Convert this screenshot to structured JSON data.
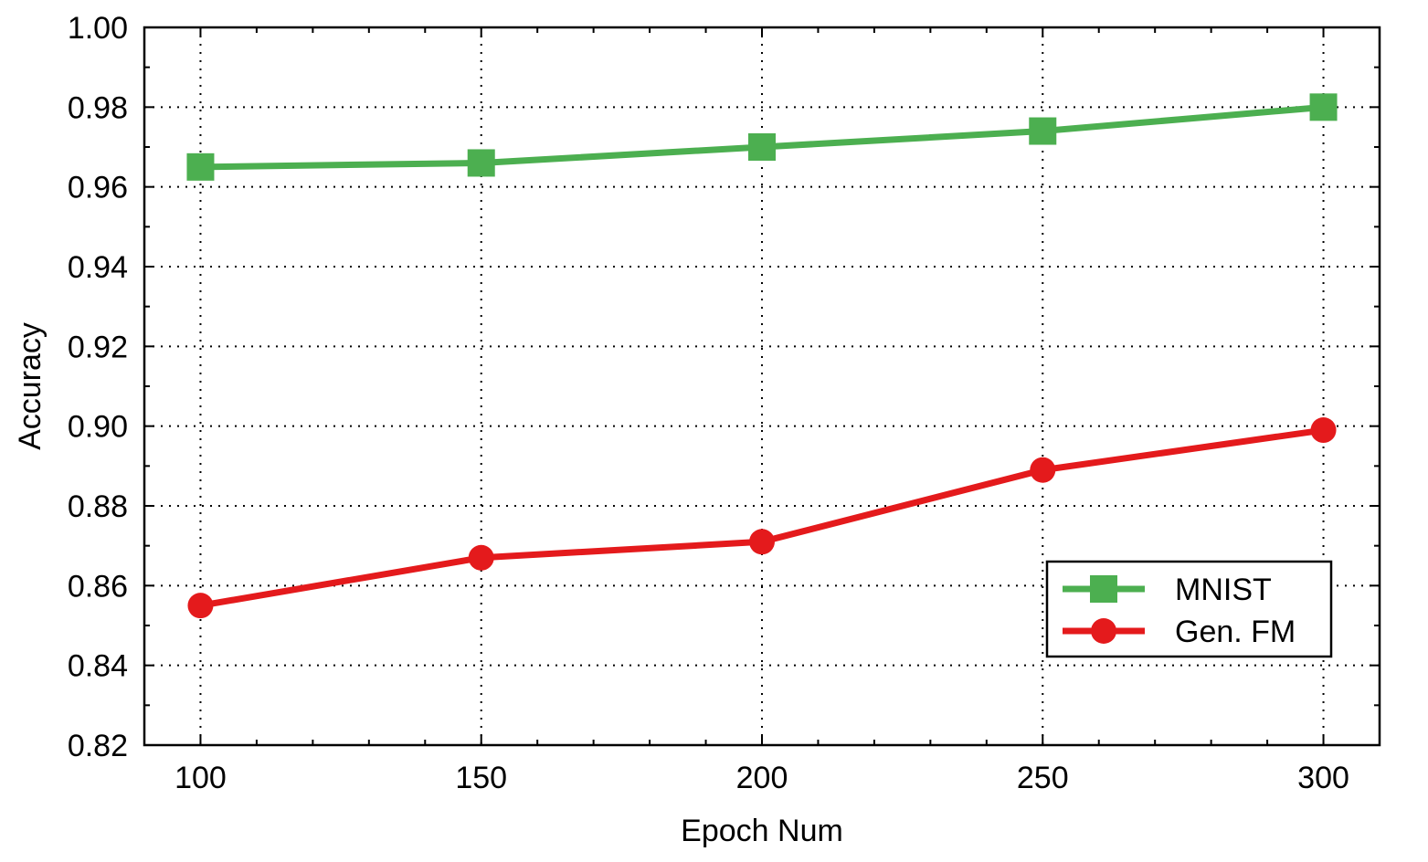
{
  "chart_data": {
    "type": "line",
    "title": "",
    "xlabel": "Epoch Num",
    "ylabel": "Accuracy",
    "x": [
      100,
      150,
      200,
      250,
      300
    ],
    "xlim": [
      90,
      310
    ],
    "ylim": [
      0.82,
      1.0
    ],
    "xticks": [
      "100",
      "150",
      "200",
      "250",
      "300"
    ],
    "yticks": [
      "0.82",
      "0.84",
      "0.86",
      "0.88",
      "0.90",
      "0.92",
      "0.94",
      "0.96",
      "0.98",
      "1.00"
    ],
    "grid": true,
    "legend_position": "lower-right",
    "series": [
      {
        "name": "MNIST",
        "values": [
          0.965,
          0.966,
          0.97,
          0.974,
          0.98
        ],
        "color": "#4caf50",
        "marker": "square"
      },
      {
        "name": "Gen. FM",
        "values": [
          0.855,
          0.867,
          0.871,
          0.889,
          0.899
        ],
        "color": "#e41a1c",
        "marker": "circle"
      }
    ]
  }
}
